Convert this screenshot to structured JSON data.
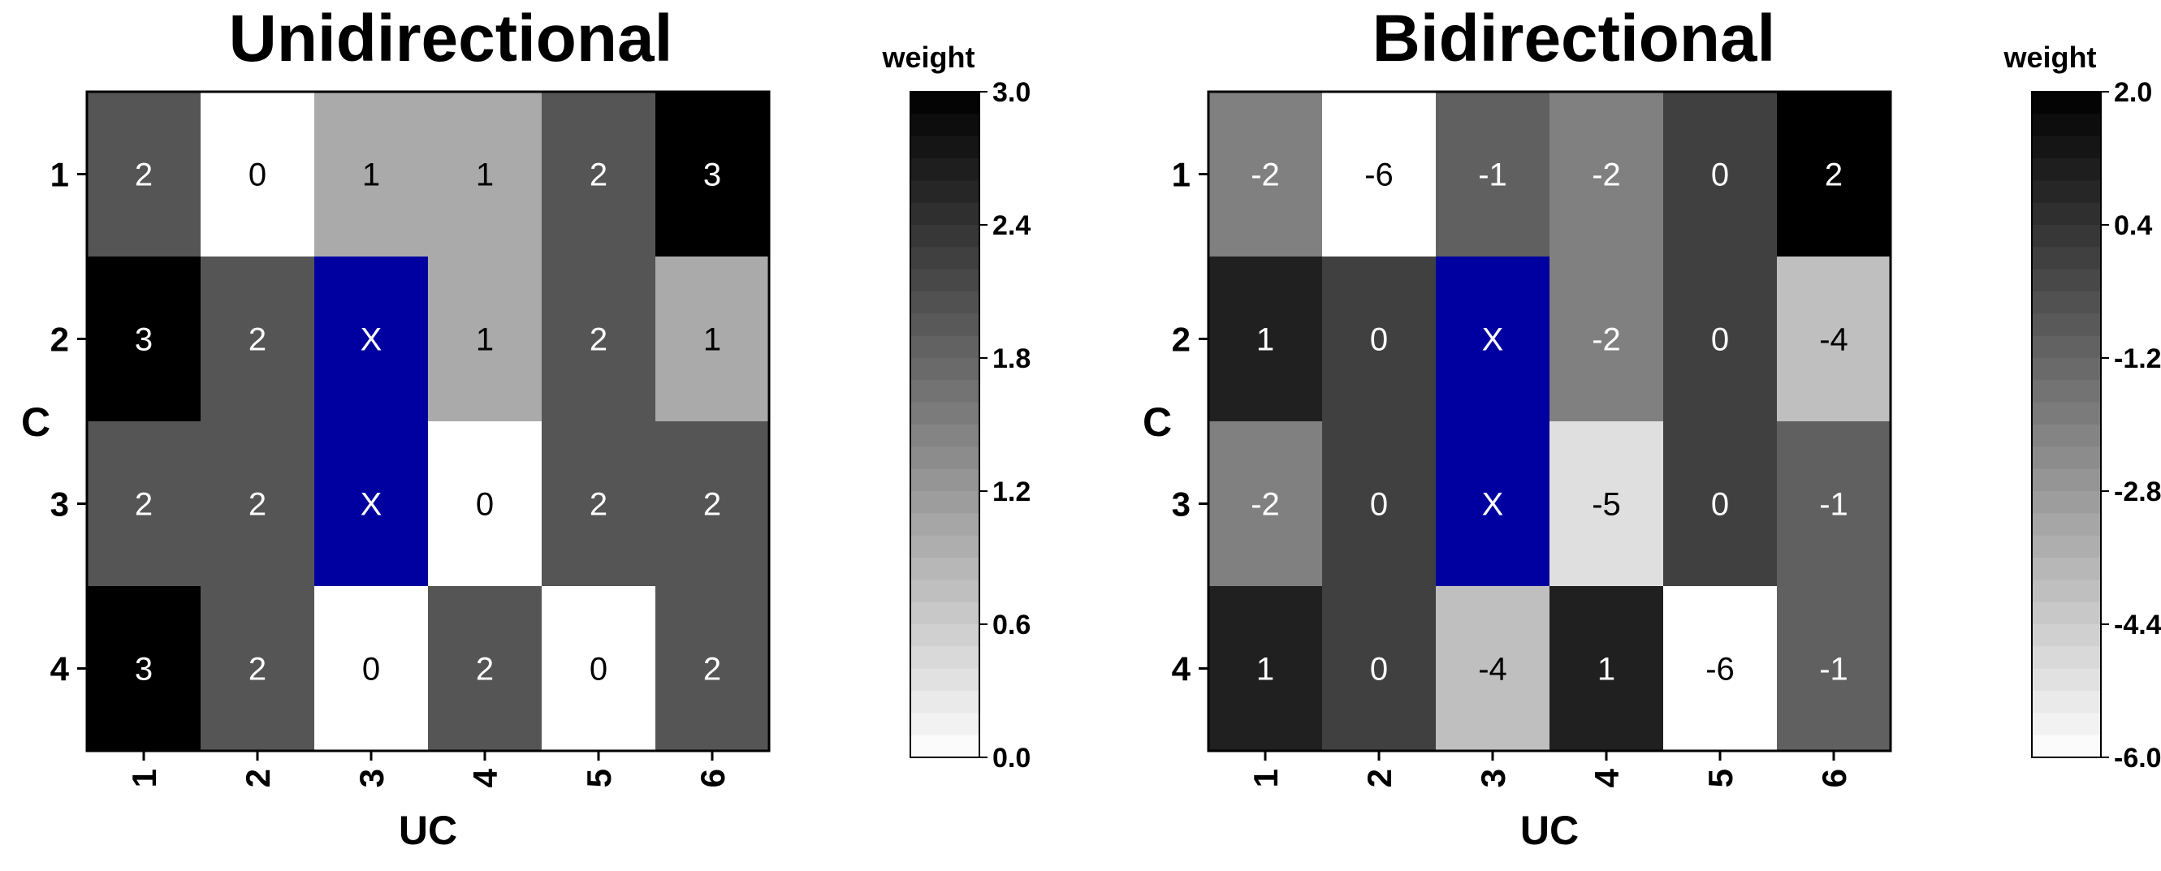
{
  "chart_data": [
    {
      "type": "heatmap",
      "title": "Unidirectional",
      "xlabel": "UC",
      "ylabel": "C",
      "x_categories": [
        "1",
        "2",
        "3",
        "4",
        "5",
        "6"
      ],
      "y_categories": [
        "1",
        "2",
        "3",
        "4"
      ],
      "cells": [
        [
          "2",
          "0",
          "1",
          "1",
          "2",
          "3"
        ],
        [
          "3",
          "2",
          "X",
          "1",
          "2",
          "1"
        ],
        [
          "2",
          "2",
          "X",
          "0",
          "2",
          "2"
        ],
        [
          "3",
          "2",
          "0",
          "2",
          "0",
          "2"
        ]
      ],
      "excluded_label": "X",
      "excluded_color": "#0000a0",
      "colorbar": {
        "title": "weight",
        "min": 0.0,
        "max": 3.0,
        "ticks": [
          "3.0",
          "2.4",
          "1.8",
          "1.2",
          "0.6",
          "0.0"
        ],
        "low_color": "#ffffff",
        "high_color": "#000000"
      }
    },
    {
      "type": "heatmap",
      "title": "Bidirectional",
      "xlabel": "UC",
      "ylabel": "C",
      "x_categories": [
        "1",
        "2",
        "3",
        "4",
        "5",
        "6"
      ],
      "y_categories": [
        "1",
        "2",
        "3",
        "4"
      ],
      "cells": [
        [
          "-2",
          "-6",
          "-1",
          "-2",
          "0",
          "2"
        ],
        [
          "1",
          "0",
          "X",
          "-2",
          "0",
          "-4"
        ],
        [
          "-2",
          "0",
          "X",
          "-5",
          "0",
          "-1"
        ],
        [
          "1",
          "0",
          "-4",
          "1",
          "-6",
          "-1"
        ]
      ],
      "excluded_label": "X",
      "excluded_color": "#0000a0",
      "colorbar": {
        "title": "weight",
        "min": -6.0,
        "max": 2.0,
        "ticks": [
          "2.0",
          "0.4",
          "-1.2",
          "-2.8",
          "-4.4",
          "-6.0"
        ],
        "low_color": "#ffffff",
        "high_color": "#000000"
      }
    }
  ]
}
